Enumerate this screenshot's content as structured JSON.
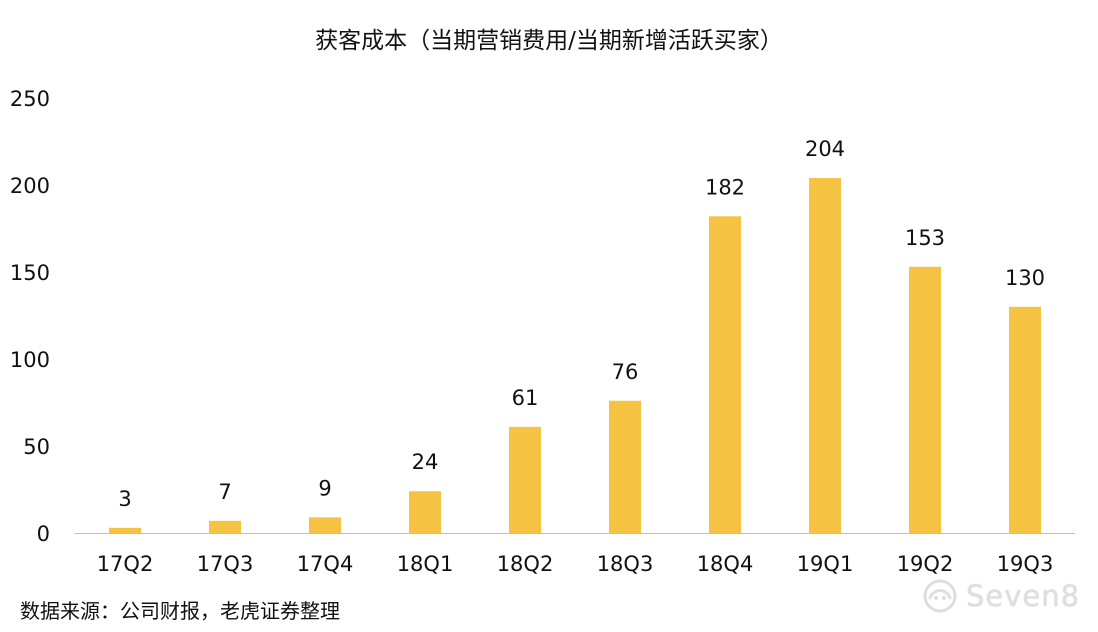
{
  "chart_data": {
    "type": "bar",
    "title": "获客成本（当期营销费用/当期新增活跃买家）",
    "xlabel": "",
    "ylabel": "",
    "categories": [
      "17Q2",
      "17Q3",
      "17Q4",
      "18Q1",
      "18Q2",
      "18Q3",
      "18Q4",
      "19Q1",
      "19Q2",
      "19Q3"
    ],
    "values": [
      3,
      7,
      9,
      24,
      61,
      76,
      182,
      204,
      153,
      130
    ],
    "data_labels": [
      "3",
      "7",
      "9",
      "24",
      "61",
      "76",
      "182",
      "204",
      "153",
      "130"
    ],
    "ylim": [
      0,
      250
    ],
    "yticks": [
      "0",
      "50",
      "100",
      "150",
      "200",
      "250"
    ],
    "grid": false,
    "legend": "none",
    "bar_color": "#F5C242",
    "axis_color": "#bfbfbf"
  },
  "source_note": "数据来源：公司财报，老虎证券整理",
  "watermark": {
    "icon": "watermark-icon",
    "text": "Seven8"
  }
}
